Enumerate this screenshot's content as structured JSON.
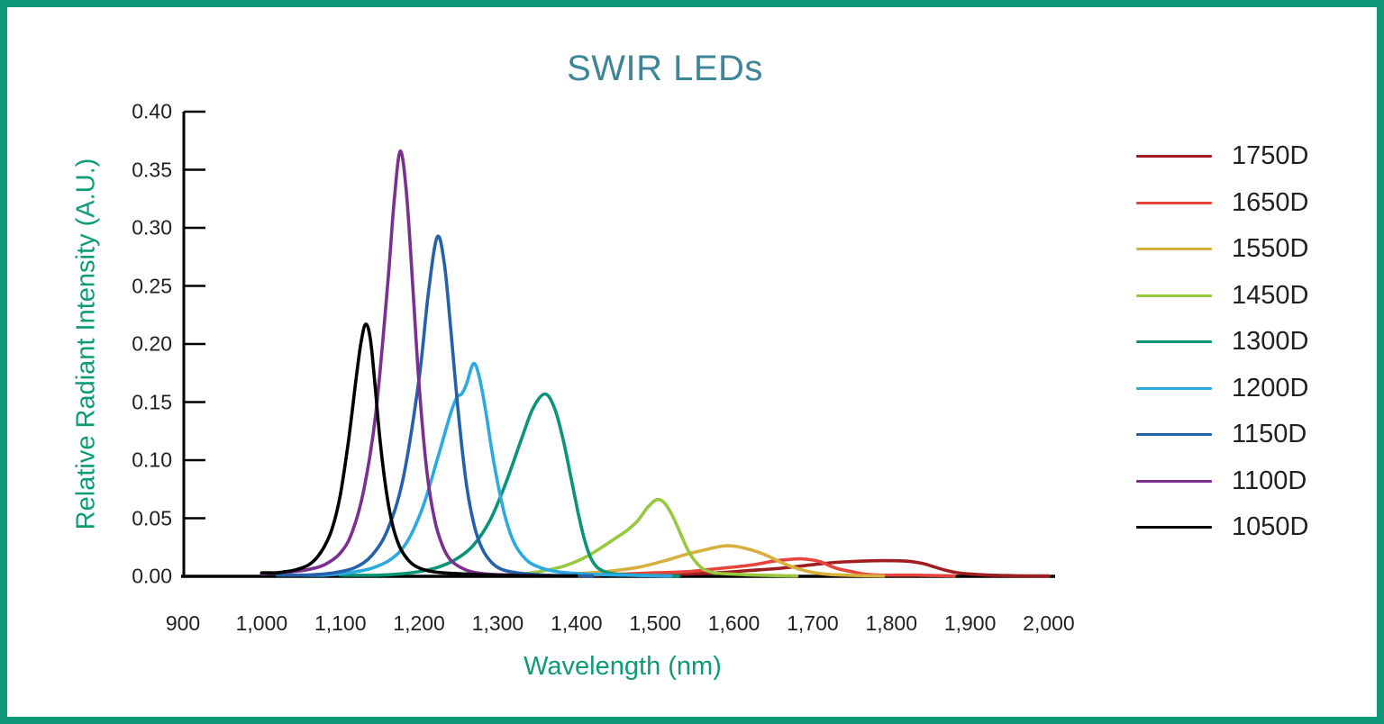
{
  "frame": {
    "border_color": "#0E9678",
    "background": "#FFFFFF"
  },
  "title": "SWIR LEDs",
  "title_color": "#3F8598",
  "axis_title_color": "#0D9B77",
  "tick_label_color": "#231F20",
  "chart_data": {
    "type": "line",
    "title": "SWIR LEDs",
    "xlabel": "Wavelength (nm)",
    "ylabel": "Relative Radiant Intensity (A.U.)",
    "xlim": [
      900,
      2000
    ],
    "ylim": [
      0,
      0.4
    ],
    "grid": false,
    "legend_position": "right",
    "x_ticks": [
      900,
      1000,
      1100,
      1200,
      1300,
      1400,
      1500,
      1600,
      1700,
      1800,
      1900,
      2000
    ],
    "x_tick_labels": [
      "900",
      "1,000",
      "1,100",
      "1,200",
      "1,300",
      "1,400",
      "1,500",
      "1,600",
      "1,700",
      "1,800",
      "1,900",
      "2,000"
    ],
    "y_ticks": [
      0.0,
      0.05,
      0.1,
      0.15,
      0.2,
      0.25,
      0.3,
      0.35,
      0.4
    ],
    "y_tick_labels": [
      "0.00",
      "0.05",
      "0.10",
      "0.15",
      "0.20",
      "0.25",
      "0.30",
      "0.35",
      "0.40"
    ],
    "series": [
      {
        "name": "1750D",
        "color": "#A01D20",
        "peak_nm": 1790,
        "peak_value": 0.0135,
        "points": [
          [
            1500,
            0.001
          ],
          [
            1540,
            0.002
          ],
          [
            1580,
            0.003
          ],
          [
            1620,
            0.005
          ],
          [
            1660,
            0.007
          ],
          [
            1700,
            0.01
          ],
          [
            1730,
            0.012
          ],
          [
            1760,
            0.013
          ],
          [
            1790,
            0.0135
          ],
          [
            1820,
            0.013
          ],
          [
            1840,
            0.011
          ],
          [
            1855,
            0.008
          ],
          [
            1870,
            0.005
          ],
          [
            1885,
            0.003
          ],
          [
            1900,
            0.002
          ],
          [
            1925,
            0.001
          ],
          [
            1960,
            0.0005
          ],
          [
            2000,
            0.0003
          ]
        ]
      },
      {
        "name": "1650D",
        "color": "#E6443C",
        "peak_nm": 1685,
        "peak_value": 0.015,
        "points": [
          [
            1420,
            0.001
          ],
          [
            1460,
            0.002
          ],
          [
            1500,
            0.003
          ],
          [
            1540,
            0.004
          ],
          [
            1570,
            0.006
          ],
          [
            1600,
            0.008
          ],
          [
            1625,
            0.01
          ],
          [
            1650,
            0.013
          ],
          [
            1670,
            0.0145
          ],
          [
            1685,
            0.015
          ],
          [
            1700,
            0.014
          ],
          [
            1712,
            0.012
          ],
          [
            1722,
            0.009
          ],
          [
            1735,
            0.006
          ],
          [
            1750,
            0.004
          ],
          [
            1765,
            0.002
          ],
          [
            1785,
            0.001
          ],
          [
            1830,
            0.001
          ],
          [
            1880,
            0.0003
          ]
        ]
      },
      {
        "name": "1550D",
        "color": "#D6AF3C",
        "peak_nm": 1595,
        "peak_value": 0.026,
        "points": [
          [
            1380,
            0.002
          ],
          [
            1420,
            0.003
          ],
          [
            1450,
            0.005
          ],
          [
            1480,
            0.008
          ],
          [
            1510,
            0.013
          ],
          [
            1540,
            0.019
          ],
          [
            1565,
            0.023
          ],
          [
            1585,
            0.026
          ],
          [
            1600,
            0.026
          ],
          [
            1615,
            0.024
          ],
          [
            1630,
            0.021
          ],
          [
            1645,
            0.017
          ],
          [
            1660,
            0.012
          ],
          [
            1675,
            0.008
          ],
          [
            1695,
            0.004
          ],
          [
            1715,
            0.002
          ],
          [
            1740,
            0.001
          ],
          [
            1790,
            0.0003
          ]
        ]
      },
      {
        "name": "1450D",
        "color": "#97C83E",
        "peak_nm": 1502,
        "peak_value": 0.066,
        "points": [
          [
            1300,
            0.001
          ],
          [
            1330,
            0.002
          ],
          [
            1360,
            0.005
          ],
          [
            1385,
            0.009
          ],
          [
            1410,
            0.016
          ],
          [
            1430,
            0.024
          ],
          [
            1450,
            0.033
          ],
          [
            1465,
            0.04
          ],
          [
            1478,
            0.048
          ],
          [
            1490,
            0.059
          ],
          [
            1502,
            0.066
          ],
          [
            1512,
            0.063
          ],
          [
            1522,
            0.052
          ],
          [
            1532,
            0.037
          ],
          [
            1542,
            0.022
          ],
          [
            1552,
            0.012
          ],
          [
            1562,
            0.006
          ],
          [
            1575,
            0.003
          ],
          [
            1595,
            0.002
          ],
          [
            1630,
            0.001
          ],
          [
            1680,
            0.0003
          ]
        ]
      },
      {
        "name": "1300D",
        "color": "#0A9477",
        "peak_nm": 1360,
        "peak_value": 0.157,
        "points": [
          [
            1100,
            0.001
          ],
          [
            1150,
            0.001
          ],
          [
            1190,
            0.003
          ],
          [
            1220,
            0.007
          ],
          [
            1245,
            0.014
          ],
          [
            1268,
            0.026
          ],
          [
            1290,
            0.048
          ],
          [
            1310,
            0.08
          ],
          [
            1330,
            0.118
          ],
          [
            1345,
            0.145
          ],
          [
            1360,
            0.157
          ],
          [
            1372,
            0.145
          ],
          [
            1383,
            0.118
          ],
          [
            1393,
            0.085
          ],
          [
            1402,
            0.055
          ],
          [
            1410,
            0.032
          ],
          [
            1418,
            0.016
          ],
          [
            1426,
            0.008
          ],
          [
            1436,
            0.004
          ],
          [
            1450,
            0.002
          ],
          [
            1480,
            0.001
          ],
          [
            1530,
            0.0003
          ]
        ]
      },
      {
        "name": "1200D",
        "color": "#2BAAE1",
        "peak_nm": 1269,
        "peak_value": 0.183,
        "points": [
          [
            1050,
            0.001
          ],
          [
            1080,
            0.001
          ],
          [
            1110,
            0.003
          ],
          [
            1140,
            0.007
          ],
          [
            1165,
            0.015
          ],
          [
            1185,
            0.03
          ],
          [
            1205,
            0.06
          ],
          [
            1225,
            0.105
          ],
          [
            1240,
            0.14
          ],
          [
            1248,
            0.154
          ],
          [
            1254,
            0.157
          ],
          [
            1260,
            0.165
          ],
          [
            1269,
            0.183
          ],
          [
            1276,
            0.173
          ],
          [
            1284,
            0.145
          ],
          [
            1295,
            0.098
          ],
          [
            1308,
            0.055
          ],
          [
            1320,
            0.03
          ],
          [
            1335,
            0.015
          ],
          [
            1352,
            0.008
          ],
          [
            1375,
            0.004
          ],
          [
            1410,
            0.002
          ],
          [
            1460,
            0.001
          ],
          [
            1520,
            0.0003
          ]
        ]
      },
      {
        "name": "1150D",
        "color": "#2361AB",
        "peak_nm": 1223,
        "peak_value": 0.292,
        "points": [
          [
            1020,
            0.001
          ],
          [
            1050,
            0.001
          ],
          [
            1080,
            0.002
          ],
          [
            1100,
            0.004
          ],
          [
            1120,
            0.008
          ],
          [
            1140,
            0.018
          ],
          [
            1160,
            0.04
          ],
          [
            1180,
            0.085
          ],
          [
            1200,
            0.17
          ],
          [
            1212,
            0.245
          ],
          [
            1223,
            0.292
          ],
          [
            1232,
            0.27
          ],
          [
            1240,
            0.215
          ],
          [
            1250,
            0.14
          ],
          [
            1260,
            0.08
          ],
          [
            1270,
            0.044
          ],
          [
            1280,
            0.024
          ],
          [
            1292,
            0.012
          ],
          [
            1305,
            0.006
          ],
          [
            1325,
            0.003
          ],
          [
            1360,
            0.001
          ],
          [
            1420,
            0.0003
          ]
        ]
      },
      {
        "name": "1100D",
        "color": "#7B2F8F",
        "peak_nm": 1176,
        "peak_value": 0.366,
        "points": [
          [
            1000,
            0.002
          ],
          [
            1020,
            0.003
          ],
          [
            1040,
            0.004
          ],
          [
            1060,
            0.006
          ],
          [
            1080,
            0.01
          ],
          [
            1100,
            0.02
          ],
          [
            1115,
            0.038
          ],
          [
            1130,
            0.075
          ],
          [
            1145,
            0.14
          ],
          [
            1160,
            0.25
          ],
          [
            1168,
            0.32
          ],
          [
            1176,
            0.366
          ],
          [
            1184,
            0.33
          ],
          [
            1192,
            0.25
          ],
          [
            1200,
            0.165
          ],
          [
            1210,
            0.09
          ],
          [
            1220,
            0.048
          ],
          [
            1230,
            0.026
          ],
          [
            1240,
            0.014
          ],
          [
            1252,
            0.008
          ],
          [
            1266,
            0.004
          ],
          [
            1285,
            0.002
          ],
          [
            1320,
            0.001
          ],
          [
            1380,
            0.0003
          ]
        ]
      },
      {
        "name": "1050D",
        "color": "#000000",
        "peak_nm": 1132,
        "peak_value": 0.217,
        "points": [
          [
            1000,
            0.003
          ],
          [
            1010,
            0.003
          ],
          [
            1020,
            0.003
          ],
          [
            1030,
            0.004
          ],
          [
            1040,
            0.005
          ],
          [
            1050,
            0.007
          ],
          [
            1060,
            0.01
          ],
          [
            1070,
            0.016
          ],
          [
            1080,
            0.026
          ],
          [
            1090,
            0.042
          ],
          [
            1100,
            0.07
          ],
          [
            1110,
            0.115
          ],
          [
            1120,
            0.17
          ],
          [
            1126,
            0.2
          ],
          [
            1132,
            0.217
          ],
          [
            1138,
            0.205
          ],
          [
            1144,
            0.165
          ],
          [
            1150,
            0.12
          ],
          [
            1158,
            0.075
          ],
          [
            1166,
            0.045
          ],
          [
            1175,
            0.026
          ],
          [
            1185,
            0.015
          ],
          [
            1195,
            0.009
          ],
          [
            1210,
            0.005
          ],
          [
            1230,
            0.003
          ],
          [
            1260,
            0.002
          ],
          [
            1300,
            0.001
          ],
          [
            1350,
            0.0005
          ],
          [
            1400,
            0.0003
          ]
        ]
      }
    ]
  }
}
